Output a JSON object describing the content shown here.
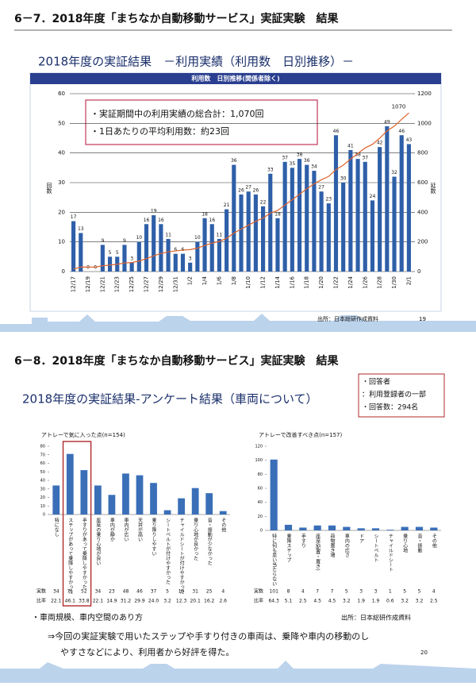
{
  "section1": {
    "heading": "6－7．2018年度「まちなか自動移動サービス」実証実験　結果",
    "subtitle": "2018年度の実証結果　－利用実績（利用数　日別推移）－",
    "notes": [
      "・実証期間中の利用実績の総合計：1,070回",
      "・1日あたりの平均利用数：約23回"
    ],
    "source": "出所：日本総研作成資料",
    "page": "19"
  },
  "section2": {
    "heading": "6－8．2018年度「まちなか自動移動サービス」実証実験　結果",
    "subtitle": "2018年度の実証結果-アンケート結果（車両について）",
    "box": [
      "・回答者",
      "：利用登録者の一部",
      "・回答数：294名"
    ],
    "bullet": "・車両規模、車内空間のあり方",
    "source": "出所：日本総研作成資料",
    "conclusion": [
      "⇒今回の実証実験で用いたステップや手すり付きの車両は、乗降や車内の移動のし",
      "やすさなどにより、利用者から好評を得た。"
    ],
    "page": "20"
  },
  "chart_data": [
    {
      "type": "bar",
      "title": "利用数　日別推移(関係者除く)",
      "y_label": "回数",
      "y2_label": "延数",
      "categories": [
        "12/17",
        null,
        "12/19",
        null,
        "12/21",
        null,
        "12/23",
        null,
        "12/25",
        null,
        "12/27",
        null,
        "12/29",
        null,
        "12/31",
        null,
        "1/2",
        null,
        "1/4",
        null,
        "1/6",
        null,
        "1/8",
        null,
        "1/10",
        null,
        "1/12",
        null,
        "1/14",
        null,
        "1/16",
        null,
        "1/18",
        null,
        "1/20",
        null,
        "1/22",
        null,
        "1/24",
        null,
        "1/26",
        null,
        "1/28",
        null,
        "1/30",
        null,
        "2/1"
      ],
      "series": [
        {
          "color": "#2e5fa8",
          "values": [
            17,
            13,
            0,
            0,
            9,
            5,
            5,
            9,
            3,
            10,
            16,
            19,
            16,
            11,
            6,
            6,
            3,
            10,
            18,
            16,
            11,
            21,
            36,
            26,
            27,
            26,
            22,
            33,
            18,
            37,
            35,
            38,
            36,
            34,
            27,
            23,
            46,
            30,
            41,
            38,
            37,
            24,
            42,
            49,
            32,
            46,
            43
          ]
        },
        {
          "type": "line",
          "axis": "y2",
          "color": "#e0622b",
          "values": [
            17,
            30,
            30,
            30,
            39,
            44,
            49,
            58,
            61,
            71,
            87,
            106,
            122,
            133,
            139,
            145,
            148,
            158,
            176,
            192,
            203,
            224,
            260,
            286,
            313,
            339,
            361,
            394,
            412,
            449,
            484,
            522,
            558,
            592,
            619,
            642,
            688,
            718,
            759,
            797,
            834,
            858,
            900,
            949,
            981,
            1027,
            1070
          ]
        }
      ],
      "annotation": "1070",
      "ylim": [
        0,
        60
      ],
      "yticks": [
        0,
        10,
        20,
        30,
        40,
        50,
        60
      ],
      "y2lim": [
        0,
        1200
      ],
      "y2ticks": [
        0,
        200,
        400,
        600,
        800,
        1000,
        1200
      ],
      "grid": true
    },
    {
      "type": "bar",
      "title": "アトレーで気に入った点(n=154)",
      "color": "#3a6fb8",
      "row_labels": [
        "実数",
        "比率"
      ],
      "categories": [
        "特になし",
        "ステップがあって乗降しやすかった",
        "手すりがあって乗降しやすかった",
        "座席の乗り心地が良い",
        "車内が静か",
        "車内が広い",
        "天井が高い",
        "乗り降りしやすい",
        "シートベルトが付けやすかった",
        "チャイルドシートが付けやすかった",
        "乗り心地が良かった",
        "音・振動が少なかった",
        "その他"
      ],
      "values": [
        34,
        71,
        52,
        34,
        23,
        48,
        46,
        37,
        5,
        19,
        31,
        25,
        4
      ],
      "ratio": [
        22.1,
        46.1,
        33.8,
        22.1,
        14.9,
        31.2,
        29.9,
        24.0,
        3.2,
        12.3,
        20.1,
        16.2,
        2.6
      ],
      "ratio_labels": [
        "22.1",
        "46.1",
        "33.8",
        "22.1",
        "14.9",
        "31.2",
        "29.9",
        "24.0",
        "3.2",
        "12.3",
        "20.1",
        "16.2",
        "2.6"
      ],
      "highlight": [
        1,
        2
      ],
      "highlight_color": "#b02a2a",
      "ylim": [
        0,
        80
      ],
      "yticks": [
        0,
        10,
        20,
        30,
        40,
        50,
        60,
        70,
        80
      ]
    },
    {
      "type": "bar",
      "title": "アトレーで改善すべき点(n=157)",
      "color": "#3a6fb8",
      "row_labels": [
        "実数",
        "比率"
      ],
      "categories": [
        "特に何も思い当たらない",
        "乗降ステップ",
        "手すり",
        "座席(配置・置き)",
        "荷物置き場",
        "車内の広さ",
        "ドア",
        "シートベルト",
        "チャイルドシート",
        "乗り心地",
        "音・振動",
        "その他"
      ],
      "values": [
        101,
        8,
        4,
        7,
        7,
        5,
        3,
        3,
        1,
        5,
        5,
        4
      ],
      "ratio": [
        64.3,
        5.1,
        2.5,
        4.5,
        4.5,
        3.2,
        1.9,
        1.9,
        0.6,
        3.2,
        3.2,
        2.5
      ],
      "ylim": [
        0,
        120
      ],
      "yticks": [
        0,
        20,
        40,
        60,
        80,
        100,
        120
      ]
    }
  ]
}
